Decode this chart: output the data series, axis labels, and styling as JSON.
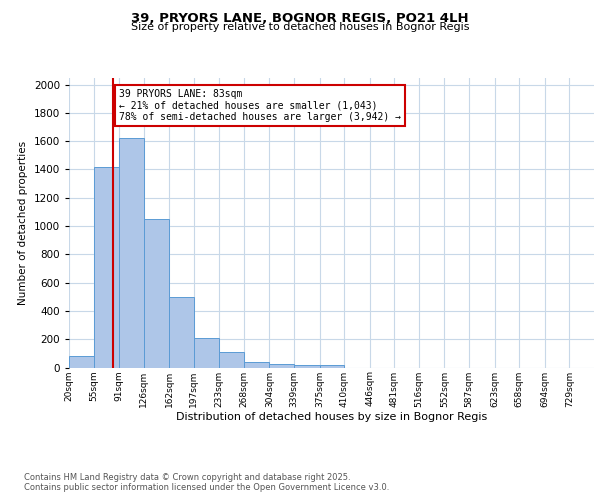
{
  "title1": "39, PRYORS LANE, BOGNOR REGIS, PO21 4LH",
  "title2": "Size of property relative to detached houses in Bognor Regis",
  "xlabel": "Distribution of detached houses by size in Bognor Regis",
  "ylabel": "Number of detached properties",
  "bin_labels": [
    "20sqm",
    "55sqm",
    "91sqm",
    "126sqm",
    "162sqm",
    "197sqm",
    "233sqm",
    "268sqm",
    "304sqm",
    "339sqm",
    "375sqm",
    "410sqm",
    "446sqm",
    "481sqm",
    "516sqm",
    "552sqm",
    "587sqm",
    "623sqm",
    "658sqm",
    "694sqm",
    "729sqm"
  ],
  "bin_edges": [
    20,
    55,
    91,
    126,
    162,
    197,
    233,
    268,
    304,
    339,
    375,
    410,
    446,
    481,
    516,
    552,
    587,
    623,
    658,
    694,
    729
  ],
  "bar_values": [
    80,
    1420,
    1620,
    1050,
    500,
    210,
    110,
    40,
    25,
    20,
    20,
    0,
    0,
    0,
    0,
    0,
    0,
    0,
    0,
    0
  ],
  "bar_color": "#aec6e8",
  "bar_edge_color": "#5b9bd5",
  "property_size": 83,
  "red_line_color": "#cc0000",
  "annotation_line1": "39 PRYORS LANE: 83sqm",
  "annotation_line2": "← 21% of detached houses are smaller (1,043)",
  "annotation_line3": "78% of semi-detached houses are larger (3,942) →",
  "annotation_box_color": "#ffffff",
  "annotation_box_edge": "#cc0000",
  "ylim": [
    0,
    2050
  ],
  "yticks": [
    0,
    200,
    400,
    600,
    800,
    1000,
    1200,
    1400,
    1600,
    1800,
    2000
  ],
  "bg_color": "#ffffff",
  "grid_color": "#c8d8e8",
  "footer1": "Contains HM Land Registry data © Crown copyright and database right 2025.",
  "footer2": "Contains public sector information licensed under the Open Government Licence v3.0."
}
